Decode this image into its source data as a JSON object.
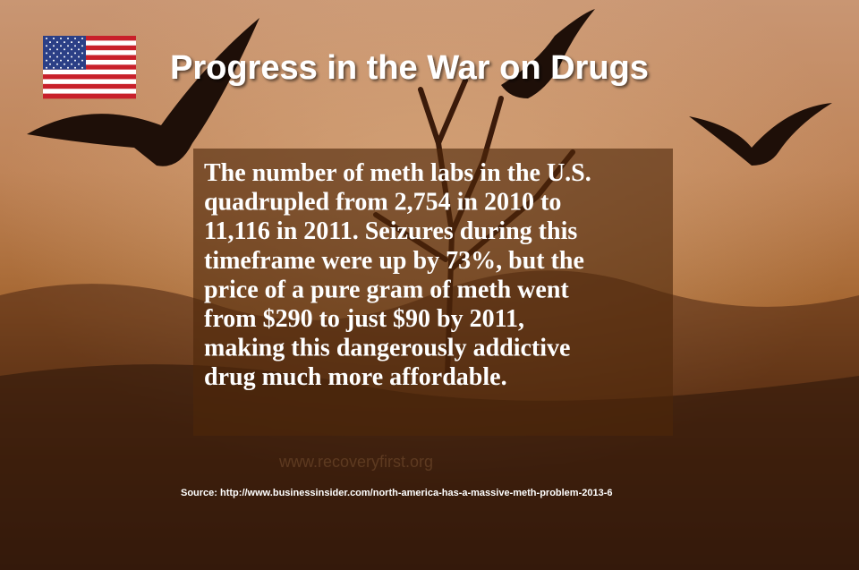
{
  "header": {
    "title": "Progress in the War on Drugs"
  },
  "body": {
    "lines": [
      "The number of meth labs in the U.S.",
      "quadrupled from 2,754 in 2010 to",
      "11,116 in 2011.  Seizures during this",
      "timeframe were up by 73%, but the",
      "price of a pure gram of meth went",
      "from $290 to just $90 by 2011,",
      "making this dangerously addictive",
      "drug much more affordable."
    ]
  },
  "watermark": "www.recoveryfirst.org",
  "source": "Source: http://www.businessinsider.com/north-america-has-a-massive-meth-problem-2013-6"
}
